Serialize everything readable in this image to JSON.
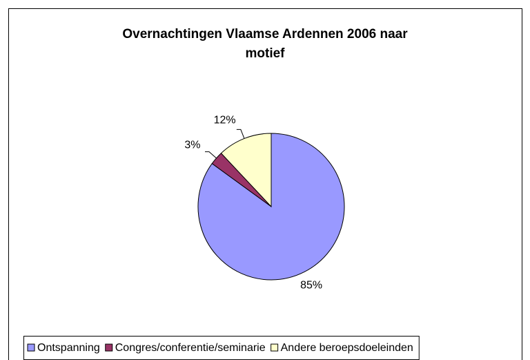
{
  "chart_data": {
    "type": "pie",
    "title": "Overnachtingen Vlaamse Ardennen 2006 naar motief",
    "categories": [
      "Ontspanning",
      "Congres/conferentie/seminarie",
      "Andere beroepsdoeleinden"
    ],
    "values": [
      85,
      3,
      12
    ],
    "value_labels": [
      "85%",
      "3%",
      "12%"
    ],
    "colors": [
      "#9999ff",
      "#993366",
      "#ffffcc"
    ],
    "legend": "bottom"
  }
}
